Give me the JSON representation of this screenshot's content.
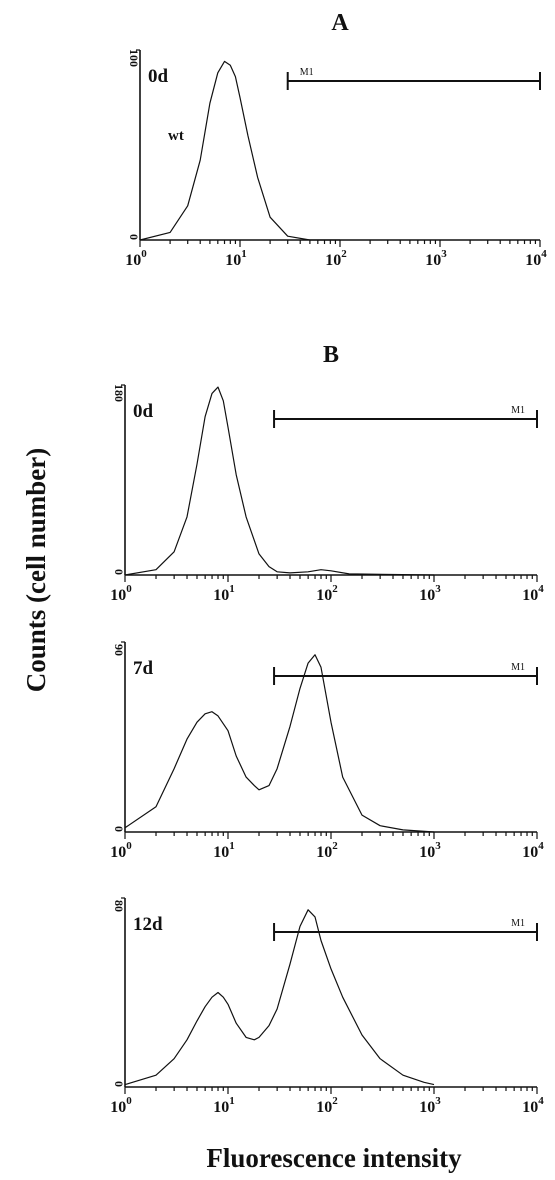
{
  "figure": {
    "ylabel": "Counts (cell number)",
    "xlabel": "Fluorescence intensity"
  },
  "chart_data": [
    {
      "type": "line",
      "panel": "A",
      "day": "0d",
      "series_label": "wt",
      "gate_label": "M1",
      "gate_range": [
        30,
        10000
      ],
      "x_scale": "log",
      "xlim": [
        1,
        10000
      ],
      "ylim": [
        0,
        100
      ],
      "ymax_label": "100",
      "y0_label": "0",
      "xtick_exp": [
        "0",
        "1",
        "2",
        "3",
        "4"
      ],
      "x": [
        1,
        2,
        3,
        4,
        5,
        6,
        7,
        8,
        9,
        10,
        12,
        15,
        20,
        30,
        50,
        100
      ],
      "values": [
        0,
        4,
        18,
        42,
        72,
        88,
        94,
        92,
        86,
        75,
        55,
        33,
        12,
        2,
        0,
        0
      ]
    },
    {
      "type": "line",
      "panel": "B",
      "day": "0d",
      "gate_label": "M1",
      "gate_range": [
        28,
        10000
      ],
      "x_scale": "log",
      "xlim": [
        1,
        10000
      ],
      "ylim": [
        0,
        180
      ],
      "ymax_label": "180",
      "y0_label": "0",
      "xtick_exp": [
        "0",
        "1",
        "2",
        "3",
        "4"
      ],
      "x": [
        1,
        2,
        3,
        4,
        5,
        6,
        7,
        8,
        9,
        10,
        12,
        15,
        20,
        25,
        30,
        40,
        60,
        80,
        100,
        150,
        1000
      ],
      "values": [
        0,
        5,
        22,
        55,
        105,
        150,
        172,
        178,
        165,
        140,
        95,
        55,
        20,
        8,
        3,
        2,
        3,
        5,
        4,
        1,
        0
      ]
    },
    {
      "type": "line",
      "panel": "B",
      "day": "7d",
      "gate_label": "M1",
      "gate_range": [
        28,
        10000
      ],
      "x_scale": "log",
      "xlim": [
        1,
        10000
      ],
      "ylim": [
        0,
        90
      ],
      "ymax_label": "90",
      "y0_label": "0",
      "xtick_exp": [
        "0",
        "1",
        "2",
        "3",
        "4"
      ],
      "x": [
        1,
        2,
        3,
        4,
        5,
        6,
        7,
        8,
        10,
        12,
        15,
        18,
        20,
        25,
        30,
        40,
        50,
        60,
        70,
        80,
        100,
        130,
        200,
        300,
        500,
        1000
      ],
      "values": [
        2,
        12,
        30,
        44,
        52,
        56,
        57,
        55,
        48,
        36,
        26,
        22,
        20,
        22,
        30,
        50,
        68,
        80,
        84,
        78,
        52,
        26,
        8,
        3,
        1,
        0
      ]
    },
    {
      "type": "line",
      "panel": "B",
      "day": "12d",
      "gate_label": "M1",
      "gate_range": [
        28,
        10000
      ],
      "x_scale": "log",
      "xlim": [
        1,
        10000
      ],
      "ylim": [
        0,
        80
      ],
      "ymax_label": "80",
      "y0_label": "0",
      "xtick_exp": [
        "0",
        "1",
        "2",
        "3",
        "4"
      ],
      "x": [
        1,
        2,
        3,
        4,
        5,
        6,
        7,
        8,
        9,
        10,
        12,
        15,
        18,
        20,
        25,
        30,
        40,
        50,
        60,
        70,
        80,
        100,
        130,
        200,
        300,
        500,
        800,
        1000
      ],
      "values": [
        1,
        5,
        12,
        20,
        28,
        34,
        38,
        40,
        38,
        35,
        27,
        21,
        20,
        21,
        26,
        33,
        52,
        68,
        75,
        72,
        62,
        50,
        38,
        22,
        12,
        5,
        2,
        1
      ]
    }
  ]
}
